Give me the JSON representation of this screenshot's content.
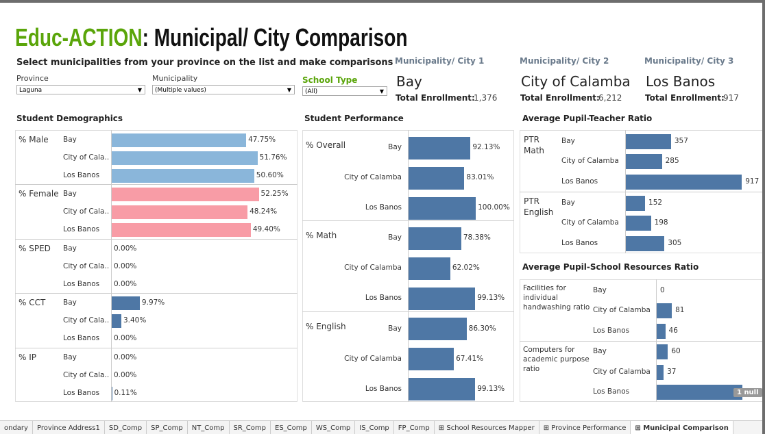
{
  "header": {
    "title_brand": "Educ-ACTION",
    "title_rest": ": Municipal/ City Comparison",
    "subtitle": "Select municipalities from your province on the list and make comparisons"
  },
  "filters": [
    {
      "label": "Province",
      "value": "Laguna"
    },
    {
      "label": "Municipality",
      "value": "(Multiple values)"
    },
    {
      "label": "School Type",
      "value": "(All)"
    }
  ],
  "cities": [
    {
      "heading": "Municipality/ City 1",
      "name": "Bay",
      "enrollment_label": "Total Enrollment:",
      "enrollment": "1,376"
    },
    {
      "heading": "Municipality/ City 2",
      "name": "City of Calamba",
      "enrollment_label": "Total Enrollment:",
      "enrollment": "6,212"
    },
    {
      "heading": "Municipality/ City 3",
      "name": "Los Banos",
      "enrollment_label": "Total Enrollment:",
      "enrollment": "917"
    }
  ],
  "panels": [
    {
      "title": "Student Demographics",
      "xlim": [
        0,
        66
      ],
      "groups": [
        {
          "label": "% Male",
          "color": "#8ab6da",
          "rows": [
            {
              "name": "Bay",
              "value": 47.75,
              "value_label": "47.75%"
            },
            {
              "name": "City of Cala..",
              "value": 51.76,
              "value_label": "51.76%"
            },
            {
              "name": "Los Banos",
              "value": 50.6,
              "value_label": "50.60%"
            }
          ]
        },
        {
          "label": "% Female",
          "color": "#f89ca6",
          "rows": [
            {
              "name": "Bay",
              "value": 52.25,
              "value_label": "52.25%"
            },
            {
              "name": "City of Cala..",
              "value": 48.24,
              "value_label": "48.24%"
            },
            {
              "name": "Los Banos",
              "value": 49.4,
              "value_label": "49.40%"
            }
          ]
        },
        {
          "label": "% SPED",
          "color": "#4e77a5",
          "rows": [
            {
              "name": "Bay",
              "value": 0,
              "value_label": "0.00%"
            },
            {
              "name": "City of Cala..",
              "value": 0,
              "value_label": "0.00%"
            },
            {
              "name": "Los Banos",
              "value": 0,
              "value_label": "0.00%"
            }
          ]
        },
        {
          "label": "% CCT",
          "color": "#4e77a5",
          "rows": [
            {
              "name": "Bay",
              "value": 9.97,
              "value_label": "9.97%"
            },
            {
              "name": "City of Cala..",
              "value": 3.4,
              "value_label": "3.40%"
            },
            {
              "name": "Los Banos",
              "value": 0,
              "value_label": "0.00%"
            }
          ]
        },
        {
          "label": "% IP",
          "color": "#4e77a5",
          "rows": [
            {
              "name": "Bay",
              "value": 0,
              "value_label": "0.00%"
            },
            {
              "name": "City of Cala..",
              "value": 0,
              "value_label": "0.00%"
            },
            {
              "name": "Los Banos",
              "value": 0.11,
              "value_label": "0.11%"
            }
          ]
        }
      ]
    },
    {
      "title": "Student Performance",
      "xlim": [
        0,
        157
      ],
      "groups": [
        {
          "label": "% Overall",
          "color": "#4e77a5",
          "rows": [
            {
              "name": "Bay",
              "value": 92.13,
              "value_label": "92.13%"
            },
            {
              "name": "City of Calamba",
              "value": 83.01,
              "value_label": "83.01%"
            },
            {
              "name": "Los Banos",
              "value": 100,
              "value_label": "100.00%"
            }
          ]
        },
        {
          "label": "% Math",
          "color": "#4e77a5",
          "rows": [
            {
              "name": "Bay",
              "value": 78.38,
              "value_label": "78.38%"
            },
            {
              "name": "City of Calamba",
              "value": 62.02,
              "value_label": "62.02%"
            },
            {
              "name": "Los Banos",
              "value": 99.13,
              "value_label": "99.13%"
            }
          ]
        },
        {
          "label": "% English",
          "color": "#4e77a5",
          "rows": [
            {
              "name": "Bay",
              "value": 86.3,
              "value_label": "86.30%"
            },
            {
              "name": "City of Calamba",
              "value": 67.41,
              "value_label": "67.41%"
            },
            {
              "name": "Los Banos",
              "value": 99.13,
              "value_label": "99.13%"
            }
          ]
        }
      ]
    },
    {
      "title": "Average Pupil-Teacher Ratio",
      "xlim": [
        0,
        1100
      ],
      "groups": [
        {
          "label": "PTR Math",
          "color": "#4e77a5",
          "rows": [
            {
              "name": "Bay",
              "value": 357
            },
            {
              "name": "City of Calamba",
              "value": 285
            },
            {
              "name": "Los Banos",
              "value": 917
            }
          ]
        },
        {
          "label": "PTR English",
          "color": "#4e77a5",
          "rows": [
            {
              "name": "Bay",
              "value": 152
            },
            {
              "name": "City of Calamba",
              "value": 198
            },
            {
              "name": "Los Banos",
              "value": 305
            }
          ]
        }
      ]
    },
    {
      "title": "Average Pupil-School Resources Ratio",
      "xlim": [
        0,
        580
      ],
      "null_indicator": "1 null",
      "groups": [
        {
          "label": "Facilities for individual handwashing ratio",
          "color": "#4e77a5",
          "rows": [
            {
              "name": "Bay",
              "value": 0
            },
            {
              "name": "City of Calamba",
              "value": 81
            },
            {
              "name": "Los Banos",
              "value": 46
            }
          ]
        },
        {
          "label": "Computers for academic purpose ratio",
          "color": "#4e77a5",
          "rows": [
            {
              "name": "Bay",
              "value": 60
            },
            {
              "name": "City of Calamba",
              "value": 37
            },
            {
              "name": "Los Banos",
              "value": 460
            }
          ]
        }
      ]
    }
  ],
  "tabs": [
    "ondary",
    "Province Address1",
    "SD_Comp",
    "SP_Comp",
    "NT_Comp",
    "SR_Comp",
    "ES_Comp",
    "WS_Comp",
    "IS_Comp",
    "FP_Comp",
    "School Resources Mapper",
    "Province Performance",
    "Municipal Comparison"
  ]
}
